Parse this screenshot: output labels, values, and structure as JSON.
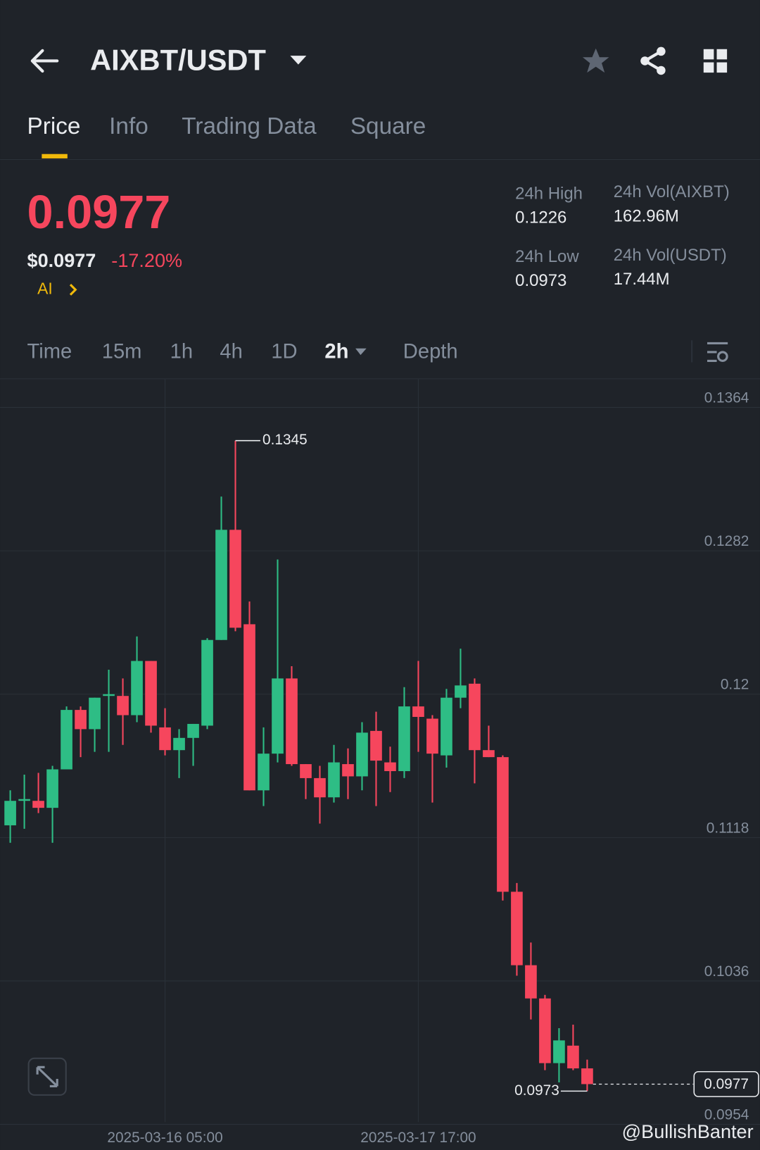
{
  "header": {
    "pair": "AIXBT/USDT"
  },
  "tabs": [
    "Price",
    "Info",
    "Trading Data",
    "Square"
  ],
  "ticker": {
    "price": "0.0977",
    "price_usd": "$0.0977",
    "change": "-17.20%",
    "ai": "AI",
    "stats": [
      {
        "label": "24h High",
        "value": "0.1226"
      },
      {
        "label": "24h Vol(AIXBT)",
        "value": "162.96M"
      },
      {
        "label": "24h Low",
        "value": "0.0973"
      },
      {
        "label": "24h Vol(USDT)",
        "value": "17.44M"
      }
    ]
  },
  "intervals": [
    "Time",
    "15m",
    "1h",
    "4h",
    "1D",
    "2h",
    "Depth"
  ],
  "watermark": "@BullishBanter",
  "chart_data": {
    "type": "candlestick",
    "categories": [
      null,
      null,
      null,
      null,
      null,
      null,
      null,
      null,
      null,
      null,
      null,
      "2025-03-16 05:00",
      null,
      null,
      null,
      null,
      null,
      null,
      null,
      null,
      null,
      null,
      null,
      null,
      null,
      null,
      null,
      null,
      null,
      "2025-03-17 17:00",
      null,
      null,
      null,
      null,
      null,
      null,
      null,
      null,
      null,
      null,
      null,
      null
    ],
    "open": [
      0.1125,
      0.1139,
      0.1139,
      0.1135,
      0.1157,
      0.1191,
      0.118,
      0.1199,
      0.1199,
      0.1188,
      0.1219,
      0.1181,
      0.1168,
      0.1175,
      0.1182,
      0.1231,
      0.1294,
      0.124,
      0.1145,
      0.1166,
      0.1209,
      0.116,
      0.1152,
      0.1141,
      0.116,
      0.1153,
      0.1179,
      0.1161,
      0.1156,
      0.1193,
      0.1186,
      0.1165,
      0.1198,
      0.1206,
      0.1168,
      0.1164,
      0.1087,
      0.1045,
      0.1026,
      0.0989,
      0.0999,
      0.0986
    ],
    "high": [
      0.1145,
      0.1154,
      0.1155,
      0.1159,
      0.1193,
      0.1193,
      0.1198,
      0.1214,
      0.1209,
      0.1233,
      0.1219,
      0.1192,
      0.118,
      0.1183,
      0.1232,
      0.1313,
      0.1345,
      0.1253,
      0.1181,
      0.1277,
      0.1216,
      0.116,
      0.1159,
      0.1171,
      0.1169,
      0.1184,
      0.119,
      0.117,
      0.1204,
      0.1219,
      0.1188,
      0.1203,
      0.1226,
      0.1209,
      0.1182,
      0.1165,
      0.1092,
      0.1058,
      0.1028,
      0.1009,
      0.1011,
      0.0991
    ],
    "low": [
      0.1115,
      0.1123,
      0.1132,
      0.1115,
      0.1157,
      0.1164,
      0.1167,
      0.1167,
      0.1171,
      0.1184,
      0.1178,
      0.1165,
      0.1152,
      0.1159,
      0.118,
      0.1231,
      0.1236,
      0.1145,
      0.1136,
      0.1161,
      0.1159,
      0.114,
      0.1126,
      0.1138,
      0.114,
      0.1145,
      0.1136,
      0.1144,
      0.1152,
      0.1167,
      0.1138,
      0.1158,
      0.1192,
      0.1149,
      0.1164,
      0.1082,
      0.1039,
      0.1014,
      0.0985,
      0.0978,
      0.0985,
      0.0973
    ],
    "close": [
      0.1139,
      0.114,
      0.1135,
      0.1157,
      0.1191,
      0.118,
      0.1198,
      0.12,
      0.1188,
      0.1219,
      0.1182,
      0.1168,
      0.1175,
      0.1183,
      0.1231,
      0.1294,
      0.1238,
      0.1145,
      0.1166,
      0.1209,
      0.116,
      0.1152,
      0.1141,
      0.1161,
      0.1153,
      0.1178,
      0.1162,
      0.1156,
      0.1193,
      0.1187,
      0.1166,
      0.1198,
      0.1205,
      0.1168,
      0.1164,
      0.1087,
      0.1045,
      0.1026,
      0.0989,
      0.1002,
      0.0986,
      0.0977
    ],
    "up_color": "#2ebd85",
    "down_color": "#f6465d",
    "ylim": [
      0.0954,
      0.1364
    ],
    "yticks": [
      0.1364,
      0.1282,
      0.12,
      0.1118,
      0.1036,
      0.0954
    ],
    "grid": true
  }
}
